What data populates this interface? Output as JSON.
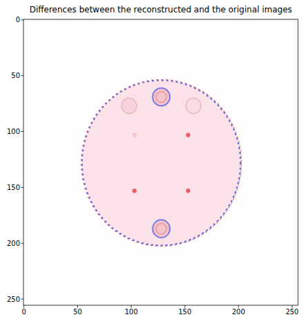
{
  "chart_data": {
    "type": "image",
    "title": "Differences between the reconstructed and the original images",
    "xlim": [
      -0.5,
      255.5
    ],
    "ylim": [
      255.5,
      -0.5
    ],
    "xticks": [
      0,
      50,
      100,
      150,
      200,
      250
    ],
    "yticks": [
      0,
      50,
      100,
      150,
      200,
      250
    ],
    "objects": [
      {
        "cx": 128,
        "cy": 128,
        "r": 74,
        "color": "#fbe2e8"
      },
      {
        "cx": 128,
        "cy": 69,
        "r": 8,
        "color": "#f4c4cc"
      },
      {
        "cx": 128,
        "cy": 187,
        "r": 8,
        "color": "#f4c4cc"
      },
      {
        "cx": 98,
        "cy": 77,
        "r": 7,
        "color": "#f8d4da"
      },
      {
        "cx": 158,
        "cy": 77,
        "r": 7,
        "color": "#f9dde2"
      },
      {
        "cx": 103,
        "cy": 103,
        "r": 2,
        "color": "#f0c8d0"
      },
      {
        "cx": 153,
        "cy": 103,
        "r": 2,
        "color": "#e0606e"
      },
      {
        "cx": 103,
        "cy": 153,
        "r": 2,
        "color": "#e0606e"
      },
      {
        "cx": 153,
        "cy": 153,
        "r": 2,
        "color": "#e0606e"
      }
    ]
  }
}
